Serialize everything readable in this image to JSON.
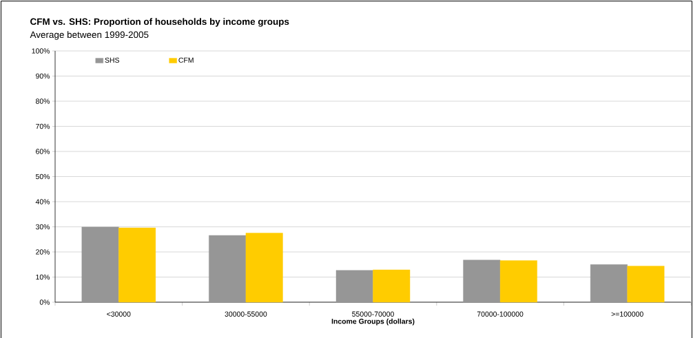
{
  "chart_data": {
    "type": "bar",
    "title": "CFM vs. SHS: Proportion of households by income groups",
    "subtitle": "Average between 1999-2005",
    "xlabel": "Income Groups (dollars)",
    "categories": [
      "<30000",
      "30000-55000",
      "55000-70000",
      "70000-100000",
      ">=100000"
    ],
    "series": [
      {
        "name": "SHS",
        "color": "#969696",
        "values": [
          29.9,
          26.6,
          12.7,
          16.8,
          15.0
        ]
      },
      {
        "name": "CFM",
        "color": "#ffcc00",
        "values": [
          29.6,
          27.5,
          12.9,
          16.6,
          14.4
        ]
      }
    ],
    "ylim": [
      0,
      100
    ],
    "yticks": [
      {
        "value": 0,
        "label": "0%"
      },
      {
        "value": 10,
        "label": "10%"
      },
      {
        "value": 20,
        "label": "20%"
      },
      {
        "value": 30,
        "label": "30%"
      },
      {
        "value": 40,
        "label": "40%"
      },
      {
        "value": 50,
        "label": "50%"
      },
      {
        "value": 60,
        "label": "60%"
      },
      {
        "value": 70,
        "label": "70%"
      },
      {
        "value": 80,
        "label": "80%"
      },
      {
        "value": 90,
        "label": "90%"
      },
      {
        "value": 100,
        "label": "100%"
      }
    ],
    "grid": "y",
    "legend": "top left"
  }
}
